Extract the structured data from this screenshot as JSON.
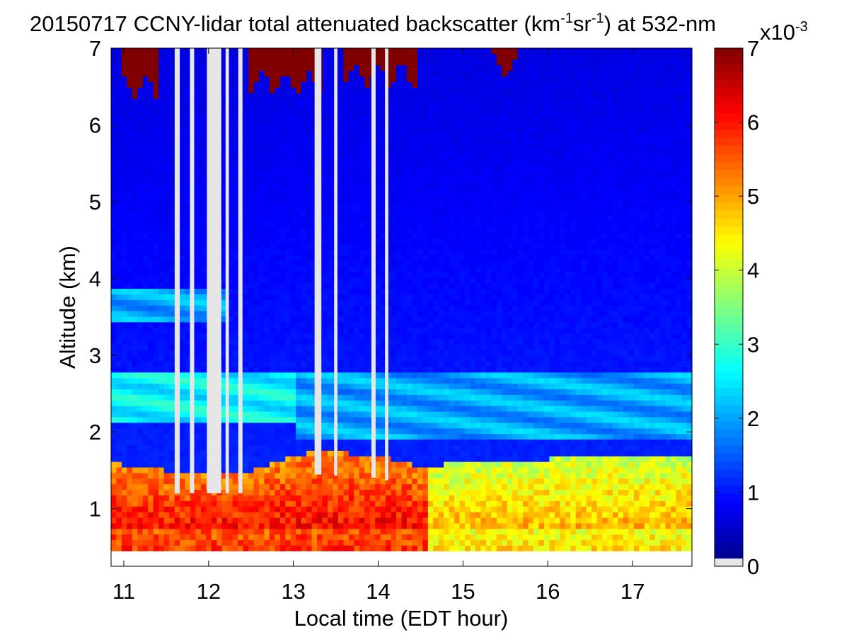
{
  "chart_data": {
    "type": "heatmap",
    "title": {
      "date": "20150717",
      "pre": "CCNY-lidar total attenuated backscatter (km",
      "sup1": "-1",
      "mid": "sr",
      "sup2": "-1",
      "post": ") at 532-nm"
    },
    "xlabel": "Local time (EDT hour)",
    "ylabel": "Altitude (km)",
    "xlim": [
      10.85,
      17.7
    ],
    "ylim": [
      0.25,
      7.0
    ],
    "data_ylim": [
      0.45,
      7.0
    ],
    "x_ticks": [
      "11",
      "12",
      "13",
      "14",
      "15",
      "16",
      "17"
    ],
    "y_ticks": [
      "1",
      "2",
      "3",
      "4",
      "5",
      "6",
      "7"
    ],
    "colorbar": {
      "range": [
        0,
        7
      ],
      "ticks": [
        "0",
        "1",
        "2",
        "3",
        "4",
        "5",
        "6",
        "7"
      ],
      "multiplier_base": "x10",
      "multiplier_exp": "-3",
      "colormap": "jet",
      "no_data_color": "#e6e6e6"
    },
    "features": {
      "boundary_layer_top_km": [
        [
          10.85,
          1.6
        ],
        [
          11.5,
          1.5
        ],
        [
          12.5,
          1.5
        ],
        [
          13.2,
          1.75
        ],
        [
          14.0,
          1.7
        ],
        [
          14.5,
          1.55
        ],
        [
          15.0,
          1.6
        ],
        [
          16.0,
          1.65
        ],
        [
          17.0,
          1.7
        ],
        [
          17.7,
          1.65
        ]
      ],
      "elevated_aerosol_layers_km": [
        {
          "start": 10.85,
          "end": 13.0,
          "bottom": 2.1,
          "top": 2.8,
          "value": 2.6
        },
        {
          "start": 10.85,
          "end": 12.2,
          "bottom": 3.4,
          "top": 3.85,
          "value": 2.0
        },
        {
          "start": 13.0,
          "end": 17.7,
          "bottom": 1.9,
          "top": 2.8,
          "value": 2.0
        }
      ],
      "upper_cloud_km": [
        {
          "start": 10.95,
          "end": 11.4,
          "bottom": 6.5,
          "value": 7
        },
        {
          "start": 12.45,
          "end": 13.35,
          "bottom": 6.55,
          "value": 7
        },
        {
          "start": 13.6,
          "end": 14.45,
          "bottom": 6.65,
          "value": 7
        },
        {
          "start": 15.35,
          "end": 15.65,
          "bottom": 6.75,
          "value": 7
        }
      ],
      "data_dropout_periods_hours": [
        [
          11.6,
          11.66
        ],
        [
          11.78,
          11.83
        ],
        [
          11.98,
          12.15
        ],
        [
          12.2,
          12.24
        ],
        [
          12.35,
          12.4
        ],
        [
          13.25,
          13.33
        ],
        [
          13.48,
          13.52
        ],
        [
          13.92,
          13.97
        ],
        [
          14.08,
          14.12
        ]
      ]
    }
  }
}
